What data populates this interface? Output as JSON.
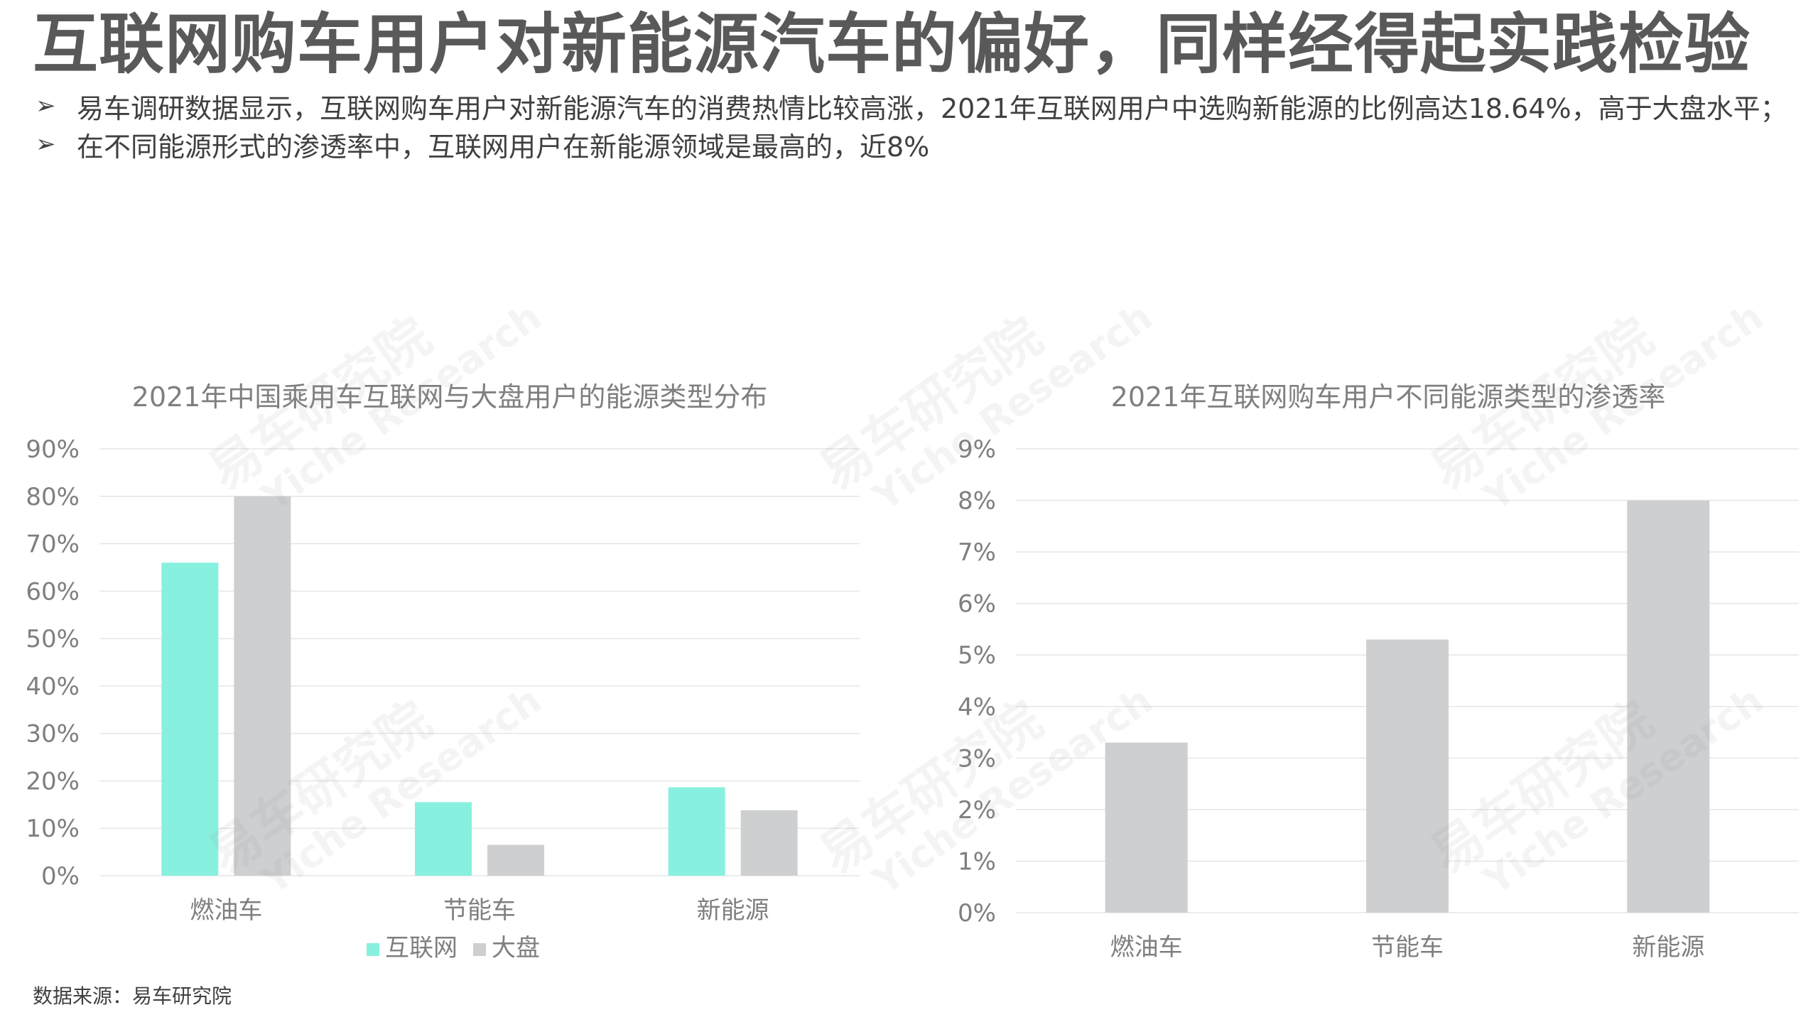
{
  "header": {
    "title": "互联网购车用户对新能源汽车的偏好，同样经得起实践检验",
    "bullets": [
      "易车调研数据显示，互联网购车用户对新能源汽车的消费热情比较高涨，2021年互联网用户中选购新能源的比例高达18.64%，高于大盘水平；",
      "在不同能源形式的渗透率中，互联网用户在新能源领域是最高的，近8%"
    ],
    "bullet_marker": "➢"
  },
  "watermark": {
    "cn": "易车研究院",
    "en": "Yiche Research"
  },
  "footer": {
    "source": "数据来源：易车研究院"
  },
  "colors": {
    "internet": "#88F0DF",
    "market": "#CDCFD1",
    "grid": "#E6E6E6",
    "text": "#7F7F7F"
  },
  "chart_data": [
    {
      "type": "bar",
      "title": "2021年中国乘用车互联网与大盘用户的能源类型分布",
      "categories": [
        "燃油车",
        "节能车",
        "新能源"
      ],
      "series": [
        {
          "name": "互联网",
          "color": "#88F0DF",
          "values": [
            66,
            15.5,
            18.64
          ]
        },
        {
          "name": "大盘",
          "color": "#CDCFD1",
          "values": [
            80,
            6.5,
            13.8
          ]
        }
      ],
      "ylim": [
        0,
        90
      ],
      "yticks": [
        "0%",
        "10%",
        "20%",
        "30%",
        "40%",
        "50%",
        "60%",
        "70%",
        "80%",
        "90%"
      ],
      "legend": "bottom",
      "grid": true
    },
    {
      "type": "bar",
      "title": "2021年互联网购车用户不同能源类型的渗透率",
      "categories": [
        "燃油车",
        "节能车",
        "新能源"
      ],
      "series": [
        {
          "color": "#CDCFD1",
          "values": [
            3.3,
            5.3,
            8.0
          ]
        }
      ],
      "ylim": [
        0,
        9
      ],
      "yticks": [
        "0%",
        "1%",
        "2%",
        "3%",
        "4%",
        "5%",
        "6%",
        "7%",
        "8%",
        "9%"
      ],
      "grid": true
    }
  ]
}
